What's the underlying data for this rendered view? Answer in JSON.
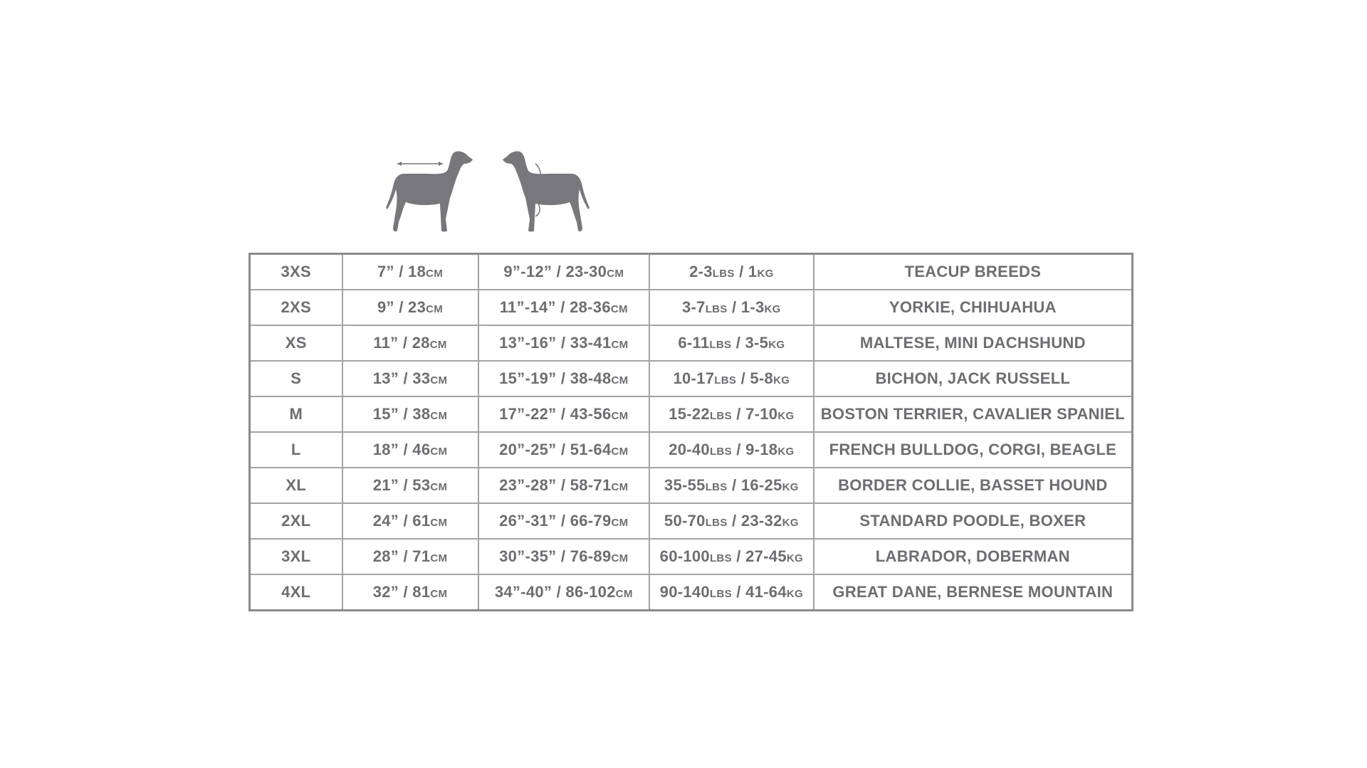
{
  "colors": {
    "text": "#6d6d72",
    "border": "#a3a3a7",
    "dog": "#77777c"
  },
  "icons": [
    "dog-back-length-icon",
    "dog-neck-chest-girth-icon"
  ],
  "rows": [
    {
      "size": "3XS",
      "c2": {
        "v": "7” / 18",
        "u": "CM"
      },
      "c3": {
        "v": "9”-12” / 23-30",
        "u": "CM"
      },
      "c4": {
        "lbs": "2-3",
        "lu": "LBS",
        "kg": " / 1",
        "ku": "KG"
      },
      "breeds": "TEACUP BREEDS"
    },
    {
      "size": "2XS",
      "c2": {
        "v": "9” / 23",
        "u": "CM"
      },
      "c3": {
        "v": "11”-14” / 28-36",
        "u": "CM"
      },
      "c4": {
        "lbs": "3-7",
        "lu": "LBS",
        "kg": " / 1-3",
        "ku": "KG"
      },
      "breeds": "YORKIE, CHIHUAHUA"
    },
    {
      "size": "XS",
      "c2": {
        "v": "11” / 28",
        "u": "CM"
      },
      "c3": {
        "v": "13”-16” / 33-41",
        "u": "CM"
      },
      "c4": {
        "lbs": "6-11",
        "lu": "LBS",
        "kg": " / 3-5",
        "ku": "KG"
      },
      "breeds": "MALTESE, MINI DACHSHUND"
    },
    {
      "size": "S",
      "c2": {
        "v": "13” / 33",
        "u": "CM"
      },
      "c3": {
        "v": "15”-19” / 38-48",
        "u": "CM"
      },
      "c4": {
        "lbs": "10-17",
        "lu": "LBS",
        "kg": " / 5-8",
        "ku": "KG"
      },
      "breeds": "BICHON, JACK RUSSELL"
    },
    {
      "size": "M",
      "c2": {
        "v": "15” / 38",
        "u": "CM"
      },
      "c3": {
        "v": "17”-22” / 43-56",
        "u": "CM"
      },
      "c4": {
        "lbs": "15-22",
        "lu": "LBS",
        "kg": " / 7-10",
        "ku": "KG"
      },
      "breeds": "BOSTON TERRIER, CAVALIER SPANIEL"
    },
    {
      "size": "L",
      "c2": {
        "v": "18” / 46",
        "u": "CM"
      },
      "c3": {
        "v": "20”-25” / 51-64",
        "u": "CM"
      },
      "c4": {
        "lbs": "20-40",
        "lu": "LBS",
        "kg": " / 9-18",
        "ku": "KG"
      },
      "breeds": "FRENCH BULLDOG, CORGI, BEAGLE"
    },
    {
      "size": "XL",
      "c2": {
        "v": "21” / 53",
        "u": "CM"
      },
      "c3": {
        "v": "23”-28” / 58-71",
        "u": "CM"
      },
      "c4": {
        "lbs": "35-55",
        "lu": "LBS",
        "kg": " / 16-25",
        "ku": "KG"
      },
      "breeds": "BORDER COLLIE, BASSET HOUND"
    },
    {
      "size": "2XL",
      "c2": {
        "v": "24” / 61",
        "u": "CM"
      },
      "c3": {
        "v": "26”-31” / 66-79",
        "u": "CM"
      },
      "c4": {
        "lbs": "50-70",
        "lu": "LBS",
        "kg": " / 23-32",
        "ku": "KG"
      },
      "breeds": "STANDARD POODLE, BOXER"
    },
    {
      "size": "3XL",
      "c2": {
        "v": "28” / 71",
        "u": "CM"
      },
      "c3": {
        "v": "30”-35” / 76-89",
        "u": "CM"
      },
      "c4": {
        "lbs": "60-100",
        "lu": "LBS",
        "kg": " / 27-45",
        "ku": "KG"
      },
      "breeds": "LABRADOR, DOBERMAN"
    },
    {
      "size": "4XL",
      "c2": {
        "v": "32” / 81",
        "u": "CM"
      },
      "c3": {
        "v": "34”-40” / 86-102",
        "u": "CM"
      },
      "c4": {
        "lbs": "90-140",
        "lu": "LBS",
        "kg": " / 41-64",
        "ku": "KG"
      },
      "breeds": "GREAT DANE, BERNESE MOUNTAIN"
    }
  ]
}
